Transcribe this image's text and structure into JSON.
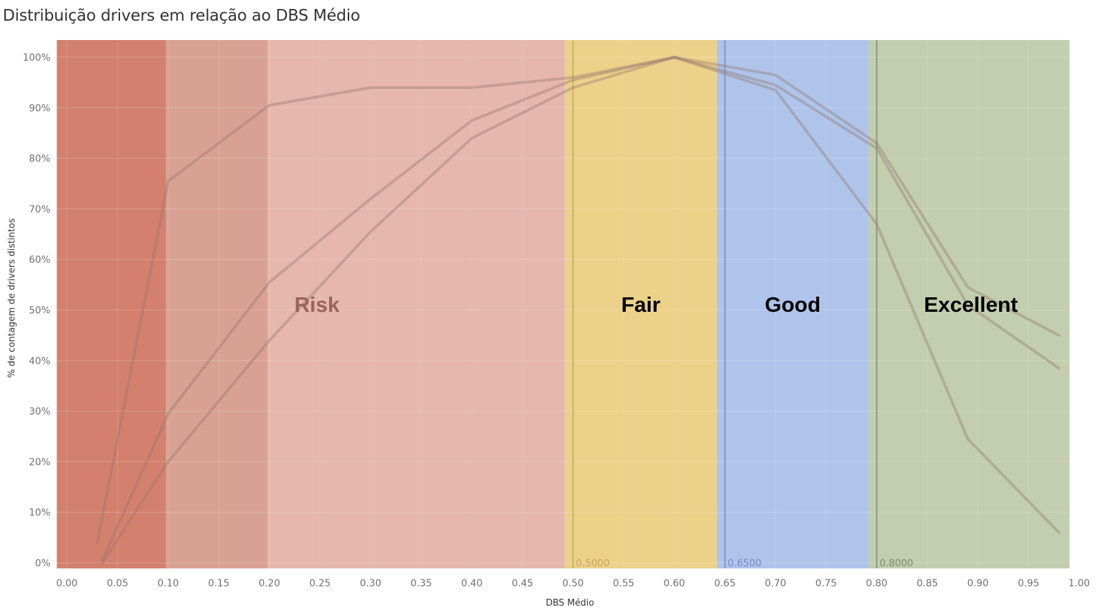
{
  "title": "Distribuição drivers em relação ao DBS Médio",
  "chart_data": {
    "type": "line",
    "title": "Distribuição drivers em relação ao DBS Médio",
    "xlabel": "DBS Médio",
    "ylabel": "% de contagem de drivers distintos",
    "xlim": [
      -0.01,
      1.0
    ],
    "ylim": [
      0,
      1.05
    ],
    "x_ticks": [
      "0.00",
      "0.05",
      "0.10",
      "0.15",
      "0.20",
      "0.25",
      "0.30",
      "0.35",
      "0.40",
      "0.45",
      "0.50",
      "0.55",
      "0.60",
      "0.65",
      "0.70",
      "0.75",
      "0.80",
      "0.85",
      "0.90",
      "0.95",
      "1.00"
    ],
    "y_ticks": [
      "0%",
      "10%",
      "20%",
      "30%",
      "40%",
      "50%",
      "60%",
      "70%",
      "80%",
      "90%",
      "100%"
    ],
    "grid": true,
    "legend": "none",
    "bands": [
      {
        "x0": -0.01,
        "x1": 0.098,
        "color": "#d3806e",
        "label": ""
      },
      {
        "x0": 0.098,
        "x1": 0.198,
        "color": "#d9a193",
        "label": ""
      },
      {
        "x0": 0.198,
        "x1": 0.492,
        "color": "#e5b7ad",
        "label": "Risk",
        "label_color": "#9a6458"
      },
      {
        "x0": 0.492,
        "x1": 0.642,
        "color": "#ecd189",
        "label": "Fair",
        "label_color": "#000000"
      },
      {
        "x0": 0.642,
        "x1": 0.792,
        "color": "#afc4eb",
        "label": "Good",
        "label_color": "#000000"
      },
      {
        "x0": 0.792,
        "x1": 0.992,
        "color": "#c2cead",
        "label": "Excellent",
        "label_color": "#000000"
      }
    ],
    "thresholds": [
      {
        "x": 0.5,
        "label": "0.5000",
        "color": "#c4a55a"
      },
      {
        "x": 0.65,
        "label": "0.6500",
        "color": "#7388c0"
      },
      {
        "x": 0.8,
        "label": "0.8000",
        "color": "#7a8a6a"
      }
    ],
    "series": [
      {
        "color": "#94776f",
        "points": [
          [
            0.03,
            0.04
          ],
          [
            0.1,
            0.755
          ],
          [
            0.2,
            0.905
          ],
          [
            0.3,
            0.94
          ],
          [
            0.4,
            0.94
          ],
          [
            0.5,
            0.96
          ],
          [
            0.6,
            1.0
          ],
          [
            0.7,
            0.965
          ],
          [
            0.8,
            0.83
          ],
          [
            0.89,
            0.545
          ],
          [
            0.98,
            0.45
          ]
        ]
      },
      {
        "color": "#94776f",
        "points": [
          [
            0.035,
            0.005
          ],
          [
            0.1,
            0.295
          ],
          [
            0.2,
            0.555
          ],
          [
            0.3,
            0.72
          ],
          [
            0.4,
            0.875
          ],
          [
            0.5,
            0.955
          ],
          [
            0.6,
            1.0
          ],
          [
            0.7,
            0.945
          ],
          [
            0.8,
            0.82
          ],
          [
            0.89,
            0.51
          ],
          [
            0.98,
            0.385
          ]
        ]
      },
      {
        "color": "#94776f",
        "points": [
          [
            0.035,
            0.0
          ],
          [
            0.1,
            0.2
          ],
          [
            0.2,
            0.44
          ],
          [
            0.3,
            0.655
          ],
          [
            0.4,
            0.84
          ],
          [
            0.5,
            0.94
          ],
          [
            0.6,
            1.0
          ],
          [
            0.7,
            0.935
          ],
          [
            0.8,
            0.67
          ],
          [
            0.89,
            0.245
          ],
          [
            0.98,
            0.06
          ]
        ]
      }
    ]
  }
}
